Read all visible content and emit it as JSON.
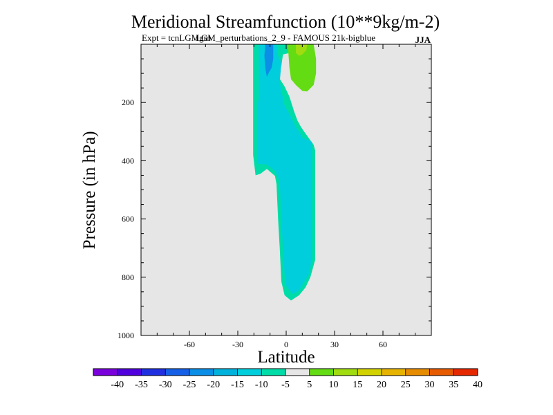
{
  "chart_data": {
    "type": "contour",
    "title": "Meridional Streamfunction (10**9kg/m-2)",
    "subtitle_left": "Expt = tcnLGMgm",
    "subtitle_center": "LGM_perturbations_2_9 - FAMOUS 21k-bigblue",
    "season": "JJA",
    "xlabel": "Latitude",
    "ylabel": "Pressure (in hPa)",
    "xlim": [
      -90,
      90
    ],
    "ylim": [
      0,
      1000
    ],
    "y_inverted": true,
    "x_ticks": [
      -60,
      -30,
      0,
      30,
      60
    ],
    "x_tick_labels": [
      "-60",
      "-30",
      "0",
      "30",
      "60"
    ],
    "y_ticks": [
      200,
      400,
      600,
      800,
      1000
    ],
    "y_tick_labels": [
      "200",
      "400",
      "600",
      "800",
      "1000"
    ],
    "background_color": "#e6e6e6",
    "colorbar": {
      "labels": [
        "-40",
        "-35",
        "-30",
        "-25",
        "-20",
        "-15",
        "-10",
        "-5",
        "5",
        "10",
        "15",
        "20",
        "25",
        "30",
        "35",
        "40"
      ],
      "colors": [
        "#7a00dc",
        "#5000dc",
        "#2030e0",
        "#1560e6",
        "#0a8ee6",
        "#00b2dc",
        "#00cedc",
        "#00dca8",
        "#e6e6e6",
        "#64dc14",
        "#a0dc10",
        "#d2d200",
        "#e6b400",
        "#e68c00",
        "#e65a00",
        "#e62800"
      ]
    },
    "regions": [
      {
        "name": "sh-cell-level-5to10",
        "level": "-10 to -5",
        "color": "#00dca8",
        "points": [
          [
            -20.5,
            0
          ],
          [
            1,
            0
          ],
          [
            2,
            30
          ],
          [
            -2,
            35
          ],
          [
            -3,
            75
          ],
          [
            -5,
            110
          ],
          [
            -1,
            145
          ],
          [
            2,
            180
          ],
          [
            5,
            232
          ],
          [
            7,
            262
          ],
          [
            9,
            282
          ],
          [
            11,
            299
          ],
          [
            14,
            322
          ],
          [
            17,
            345
          ],
          [
            18,
            365
          ],
          [
            18,
            560
          ],
          [
            18,
            740
          ],
          [
            15,
            800
          ],
          [
            12,
            835
          ],
          [
            8,
            862
          ],
          [
            3,
            880
          ],
          [
            -1,
            862
          ],
          [
            -3,
            815
          ],
          [
            -4,
            700
          ],
          [
            -5,
            600
          ],
          [
            -6,
            480
          ],
          [
            -7,
            452
          ],
          [
            -12,
            428
          ],
          [
            -16,
            445
          ],
          [
            -19,
            450
          ],
          [
            -20.5,
            380
          ],
          [
            -20.5,
            250
          ],
          [
            -20.5,
            100
          ]
        ]
      },
      {
        "name": "sh-cell-level-10to15",
        "level": "-15 to -10",
        "color": "#00cedc",
        "points": [
          [
            -17,
            0
          ],
          [
            -6,
            0
          ],
          [
            -5,
            40
          ],
          [
            -3,
            65
          ],
          [
            -4,
            130
          ],
          [
            -3,
            160
          ],
          [
            -1,
            210
          ],
          [
            3,
            250
          ],
          [
            6,
            285
          ],
          [
            8,
            300
          ],
          [
            10,
            320
          ],
          [
            16,
            335
          ],
          [
            16,
            560
          ],
          [
            16,
            740
          ],
          [
            14,
            790
          ],
          [
            11,
            818
          ],
          [
            8,
            845
          ],
          [
            4,
            858
          ],
          [
            0,
            830
          ],
          [
            -1,
            790
          ],
          [
            -2,
            700
          ],
          [
            -3,
            600
          ],
          [
            -4,
            470
          ],
          [
            -7,
            435
          ],
          [
            -12,
            413
          ],
          [
            -18,
            410
          ],
          [
            -18,
            210
          ],
          [
            -17,
            190
          ],
          [
            -17,
            100
          ]
        ]
      },
      {
        "name": "sh-cell-level-15to20",
        "level": "-20 to -15",
        "color": "#0a8ee6",
        "points": [
          [
            -13,
            0
          ],
          [
            -8,
            0
          ],
          [
            -8,
            50
          ],
          [
            -9,
            80
          ],
          [
            -11,
            100
          ],
          [
            -12,
            112
          ],
          [
            -13,
            80
          ],
          [
            -13.5,
            40
          ]
        ]
      },
      {
        "name": "nh-cell-level-5to10",
        "level": "5 to 10",
        "color": "#64dc14",
        "points": [
          [
            1,
            0
          ],
          [
            17,
            0
          ],
          [
            18.5,
            50
          ],
          [
            18.5,
            100
          ],
          [
            17,
            140
          ],
          [
            13,
            162
          ],
          [
            10,
            160
          ],
          [
            6,
            140
          ],
          [
            3,
            120
          ],
          [
            2,
            80
          ]
        ]
      },
      {
        "name": "nh-cell-level-10to15",
        "level": "10 to 15",
        "color": "#a0dc10",
        "points": [
          [
            6,
            0
          ],
          [
            13,
            0
          ],
          [
            12.5,
            20
          ],
          [
            10,
            35
          ],
          [
            8,
            40
          ],
          [
            6,
            30
          ]
        ]
      }
    ]
  }
}
